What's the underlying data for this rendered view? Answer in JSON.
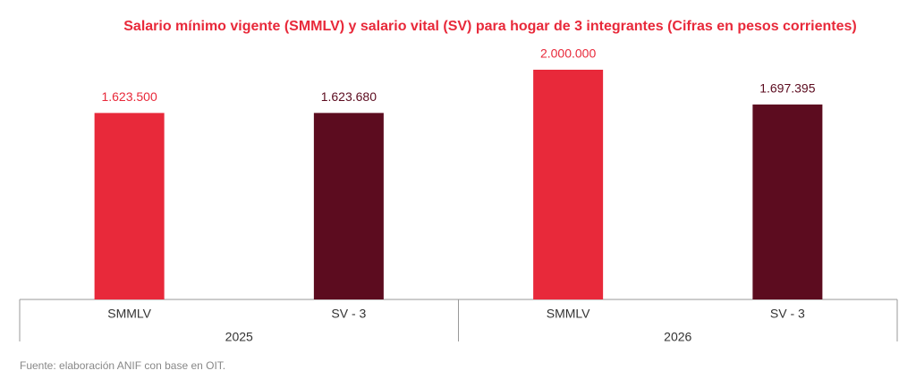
{
  "chart_data": {
    "type": "bar",
    "title": "Salario mínimo vigente (SMMLV) y salario vital (SV) para hogar de 3 integrantes (Cifras en pesos corrientes)",
    "categories": [
      "SMMLV",
      "SV - 3",
      "SMMLV",
      "SV - 3"
    ],
    "groups": [
      "2025",
      "2026"
    ],
    "values": [
      1623500,
      1623680,
      2000000,
      1697395
    ],
    "value_labels": [
      "1.623.500",
      "1.623.680",
      "2.000.000",
      "1.697.395"
    ],
    "colors": [
      "#e8293a",
      "#5c0c1f",
      "#e8293a",
      "#5c0c1f"
    ],
    "source": "Fuente: elaboración ANIF con base en OIT."
  }
}
